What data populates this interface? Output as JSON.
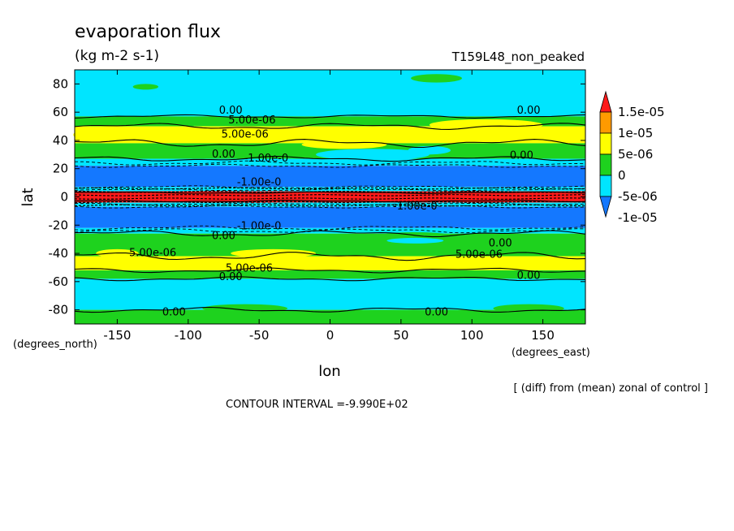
{
  "chart_data": {
    "type": "heatmap",
    "title": "evaporation flux",
    "units": "(kg m-2 s-1)",
    "run_label": "T159L48_non_peaked",
    "xlabel": "lon",
    "ylabel": "lat",
    "x_units": "(degrees_east)",
    "y_units": "(degrees_north)",
    "xlim": [
      -180,
      180
    ],
    "ylim": [
      -90,
      90
    ],
    "x_ticks": [
      -150,
      -100,
      -50,
      0,
      50,
      100,
      150
    ],
    "y_ticks": [
      80,
      60,
      40,
      20,
      0,
      -20,
      -40,
      -60,
      -80
    ],
    "note": "[ (diff) from (mean) zonal of control ]",
    "contour_interval": "CONTOUR INTERVAL =-9.990E+02",
    "colorbar": {
      "labels": [
        "1.5e-05",
        "1e-05",
        "5e-06",
        "0",
        "-5e-06",
        "-1e-05"
      ],
      "colors": [
        "#ff1a1a",
        "#ff9a00",
        "#ffff00",
        "#1ed21e",
        "#00e5ff",
        "#1478ff"
      ]
    },
    "bands": [
      {
        "lat_from": 90,
        "lat_to": 57,
        "color": "#00e5ff"
      },
      {
        "lat_from": 57,
        "lat_to": 50,
        "color": "#1ed21e"
      },
      {
        "lat_from": 50,
        "lat_to": 38,
        "color": "#ffff00"
      },
      {
        "lat_from": 38,
        "lat_to": 27,
        "color": "#1ed21e"
      },
      {
        "lat_from": 27,
        "lat_to": 22,
        "color": "#00e5ff"
      },
      {
        "lat_from": 22,
        "lat_to": 7,
        "color": "#1478ff"
      },
      {
        "lat_from": 7,
        "lat_to": 4,
        "color": "#00e5ff"
      },
      {
        "lat_from": 4,
        "lat_to": -4,
        "color": "#ff1a1a"
      },
      {
        "lat_from": -4,
        "lat_to": -7,
        "color": "#00e5ff"
      },
      {
        "lat_from": -7,
        "lat_to": -22,
        "color": "#1478ff"
      },
      {
        "lat_from": -22,
        "lat_to": -26,
        "color": "#00e5ff"
      },
      {
        "lat_from": -26,
        "lat_to": -42,
        "color": "#1ed21e"
      },
      {
        "lat_from": -42,
        "lat_to": -52,
        "color": "#ffff00"
      },
      {
        "lat_from": -52,
        "lat_to": -58,
        "color": "#1ed21e"
      },
      {
        "lat_from": -58,
        "lat_to": -80,
        "color": "#00e5ff"
      },
      {
        "lat_from": -80,
        "lat_to": -90,
        "color": "#1ed21e"
      }
    ],
    "contour_labels": [
      {
        "text": "0.00",
        "lon": -70,
        "lat": 59
      },
      {
        "text": "5.00e-06",
        "lon": -55,
        "lat": 52
      },
      {
        "text": "5.00e-06",
        "lon": -60,
        "lat": 42
      },
      {
        "text": "0.00",
        "lon": 140,
        "lat": 59
      },
      {
        "text": "0.00",
        "lon": -75,
        "lat": 28
      },
      {
        "text": "-1.00e-0",
        "lon": -45,
        "lat": 25
      },
      {
        "text": "0.00",
        "lon": 135,
        "lat": 27
      },
      {
        "text": "-1.00e-0",
        "lon": -50,
        "lat": 8
      },
      {
        "text": "-1.00e-0",
        "lon": 60,
        "lat": -9
      },
      {
        "text": "-1.00e-0",
        "lon": -50,
        "lat": -23
      },
      {
        "text": "0.00",
        "lon": -75,
        "lat": -30
      },
      {
        "text": "0.00",
        "lon": 120,
        "lat": -35
      },
      {
        "text": "5.00e-06",
        "lon": -125,
        "lat": -42
      },
      {
        "text": "5.00e-06",
        "lon": 105,
        "lat": -43
      },
      {
        "text": "5.00e-06",
        "lon": -57,
        "lat": -53
      },
      {
        "text": "0.00",
        "lon": -70,
        "lat": -59
      },
      {
        "text": "0.00",
        "lon": 140,
        "lat": -58
      },
      {
        "text": "0.00",
        "lon": -110,
        "lat": -84
      },
      {
        "text": "0.00",
        "lon": 75,
        "lat": -84
      }
    ]
  }
}
